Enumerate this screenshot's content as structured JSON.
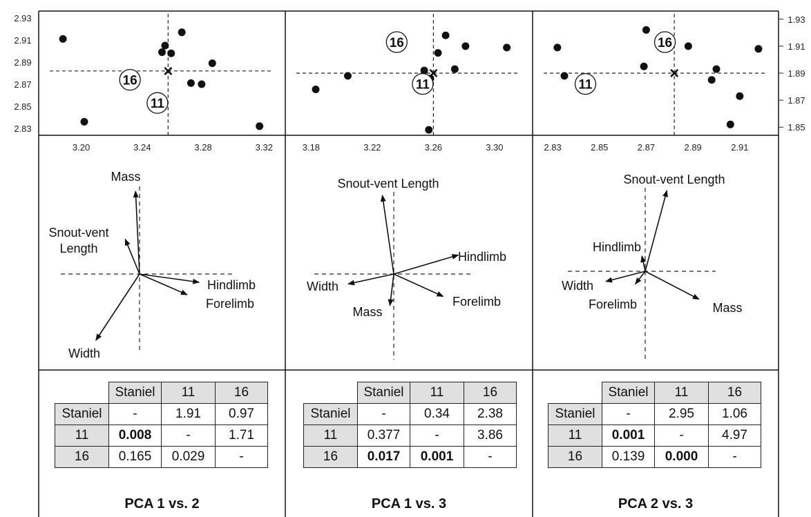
{
  "chart_data": [
    {
      "type": "scatter",
      "title": "PCA 1 vs. 2",
      "x_ticks": [
        "3.20",
        "3.24",
        "3.28",
        "3.32"
      ],
      "x_tick_values": [
        3.2,
        3.24,
        3.28,
        3.32
      ],
      "y_ticks": [
        "2.93",
        "2.91",
        "2.89",
        "2.87",
        "2.85",
        "2.83"
      ],
      "y_tick_values": [
        2.93,
        2.91,
        2.89,
        2.87,
        2.85,
        2.83
      ],
      "xlim": [
        3.173,
        3.333
      ],
      "ylim": [
        2.825,
        2.935
      ],
      "points": [
        {
          "x": 3.188,
          "y": 2.911
        },
        {
          "x": 3.202,
          "y": 2.836
        },
        {
          "x": 3.253,
          "y": 2.899
        },
        {
          "x": 3.255,
          "y": 2.905
        },
        {
          "x": 3.259,
          "y": 2.898
        },
        {
          "x": 3.266,
          "y": 2.917
        },
        {
          "x": 3.272,
          "y": 2.871
        },
        {
          "x": 3.279,
          "y": 2.87
        },
        {
          "x": 3.286,
          "y": 2.889
        },
        {
          "x": 3.317,
          "y": 2.832
        }
      ],
      "centroid": {
        "x": 3.257,
        "y": 2.882
      },
      "labels": [
        {
          "text": "16",
          "x": 3.232,
          "y": 2.874
        },
        {
          "text": "11",
          "x": 3.25,
          "y": 2.853
        }
      ],
      "biplot": {
        "vectors": [
          {
            "name": "Mass",
            "dx": -0.05,
            "dy": 1.0
          },
          {
            "name": "Snout-vent Length",
            "dx": -0.18,
            "dy": 0.42
          },
          {
            "name": "Hindlimb",
            "dx": 0.75,
            "dy": -0.1
          },
          {
            "name": "Forelimb",
            "dx": 0.6,
            "dy": -0.25
          },
          {
            "name": "Width",
            "dx": -0.55,
            "dy": -0.8
          }
        ],
        "labels": {
          "Mass": "Mass",
          "Snout-vent Length": [
            "Snout-vent",
            "Length"
          ],
          "Hindlimb": "Hindlimb",
          "Forelimb": "Forelimb",
          "Width": "Width"
        }
      },
      "table": {
        "columns": [
          "Staniel",
          "11",
          "16"
        ],
        "rows": [
          {
            "label": "Staniel",
            "cells": [
              "-",
              "1.91",
              "0.97"
            ],
            "bold": [
              false,
              false,
              false
            ]
          },
          {
            "label": "11",
            "cells": [
              "0.008",
              "-",
              "1.71"
            ],
            "bold": [
              true,
              false,
              false
            ]
          },
          {
            "label": "16",
            "cells": [
              "0.165",
              "0.029",
              "-"
            ],
            "bold": [
              false,
              false,
              false
            ]
          }
        ]
      }
    },
    {
      "type": "scatter",
      "title": "PCA 1 vs. 3",
      "x_ticks": [
        "3.18",
        "3.22",
        "3.26",
        "3.30"
      ],
      "x_tick_values": [
        3.18,
        3.22,
        3.26,
        3.3
      ],
      "xlim": [
        3.164,
        3.324
      ],
      "ylim": [
        1.845,
        1.935
      ],
      "points": [
        {
          "x": 3.183,
          "y": 1.878
        },
        {
          "x": 3.204,
          "y": 1.888
        },
        {
          "x": 3.254,
          "y": 1.892
        },
        {
          "x": 3.258,
          "y": 1.886
        },
        {
          "x": 3.263,
          "y": 1.905
        },
        {
          "x": 3.268,
          "y": 1.918
        },
        {
          "x": 3.274,
          "y": 1.893
        },
        {
          "x": 3.281,
          "y": 1.91
        },
        {
          "x": 3.308,
          "y": 1.909
        },
        {
          "x": 3.257,
          "y": 1.848
        }
      ],
      "centroid": {
        "x": 3.26,
        "y": 1.89
      },
      "labels": [
        {
          "text": "16",
          "x": 3.236,
          "y": 1.913
        },
        {
          "text": "11",
          "x": 3.253,
          "y": 1.882
        }
      ],
      "biplot": {
        "vectors": [
          {
            "name": "Snout-vent Length",
            "dx": -0.15,
            "dy": 0.95
          },
          {
            "name": "Hindlimb",
            "dx": 0.85,
            "dy": 0.23
          },
          {
            "name": "Width",
            "dx": -0.6,
            "dy": -0.12
          },
          {
            "name": "Forelimb",
            "dx": 0.65,
            "dy": -0.27
          },
          {
            "name": "Mass",
            "dx": -0.05,
            "dy": -0.38
          }
        ],
        "labels": {
          "Snout-vent Length": "Snout-vent Length",
          "Hindlimb": "Hindlimb",
          "Width": "Width",
          "Forelimb": "Forelimb",
          "Mass": "Mass"
        }
      },
      "table": {
        "columns": [
          "Staniel",
          "11",
          "16"
        ],
        "rows": [
          {
            "label": "Staniel",
            "cells": [
              "-",
              "0.34",
              "2.38"
            ],
            "bold": [
              false,
              false,
              false
            ]
          },
          {
            "label": "11",
            "cells": [
              "0.377",
              "-",
              "3.86"
            ],
            "bold": [
              false,
              false,
              false
            ]
          },
          {
            "label": "16",
            "cells": [
              "0.017",
              "0.001",
              "-"
            ],
            "bold": [
              true,
              true,
              false
            ]
          }
        ]
      }
    },
    {
      "type": "scatter",
      "title": "PCA 2 vs. 3",
      "x_ticks": [
        "2.83",
        "2.85",
        "2.87",
        "2.89",
        "2.91"
      ],
      "x_tick_values": [
        2.83,
        2.85,
        2.87,
        2.89,
        2.91
      ],
      "y_ticks": [
        "1.93",
        "1.91",
        "1.89",
        "1.87",
        "1.85"
      ],
      "y_tick_values": [
        1.93,
        1.91,
        1.89,
        1.87,
        1.85
      ],
      "xlim": [
        2.822,
        2.926
      ],
      "ylim": [
        1.845,
        1.935
      ],
      "points": [
        {
          "x": 2.832,
          "y": 1.909
        },
        {
          "x": 2.835,
          "y": 1.888
        },
        {
          "x": 2.87,
          "y": 1.922
        },
        {
          "x": 2.869,
          "y": 1.895
        },
        {
          "x": 2.888,
          "y": 1.91
        },
        {
          "x": 2.898,
          "y": 1.885
        },
        {
          "x": 2.9,
          "y": 1.893
        },
        {
          "x": 2.906,
          "y": 1.852
        },
        {
          "x": 2.91,
          "y": 1.873
        },
        {
          "x": 2.918,
          "y": 1.908
        }
      ],
      "centroid": {
        "x": 2.882,
        "y": 1.89
      },
      "labels": [
        {
          "text": "16",
          "x": 2.878,
          "y": 1.913
        },
        {
          "text": "11",
          "x": 2.844,
          "y": 1.882
        }
      ],
      "biplot": {
        "vectors": [
          {
            "name": "Snout-vent Length",
            "dx": 0.33,
            "dy": 0.95
          },
          {
            "name": "Hindlimb",
            "dx": -0.05,
            "dy": 0.18
          },
          {
            "name": "Width",
            "dx": -0.6,
            "dy": -0.12
          },
          {
            "name": "Forelimb",
            "dx": -0.15,
            "dy": -0.15
          },
          {
            "name": "Mass",
            "dx": 0.82,
            "dy": -0.33
          }
        ],
        "labels": {
          "Snout-vent Length": "Snout-vent Length",
          "Hindlimb": "Hindlimb",
          "Width": "Width",
          "Forelimb": "Forelimb",
          "Mass": "Mass"
        }
      },
      "table": {
        "columns": [
          "Staniel",
          "11",
          "16"
        ],
        "rows": [
          {
            "label": "Staniel",
            "cells": [
              "-",
              "2.95",
              "1.06"
            ],
            "bold": [
              false,
              false,
              false
            ]
          },
          {
            "label": "11",
            "cells": [
              "0.001",
              "-",
              "4.97"
            ],
            "bold": [
              true,
              false,
              false
            ]
          },
          {
            "label": "16",
            "cells": [
              "0.139",
              "0.000",
              "-"
            ],
            "bold": [
              false,
              true,
              false
            ]
          }
        ]
      }
    }
  ]
}
